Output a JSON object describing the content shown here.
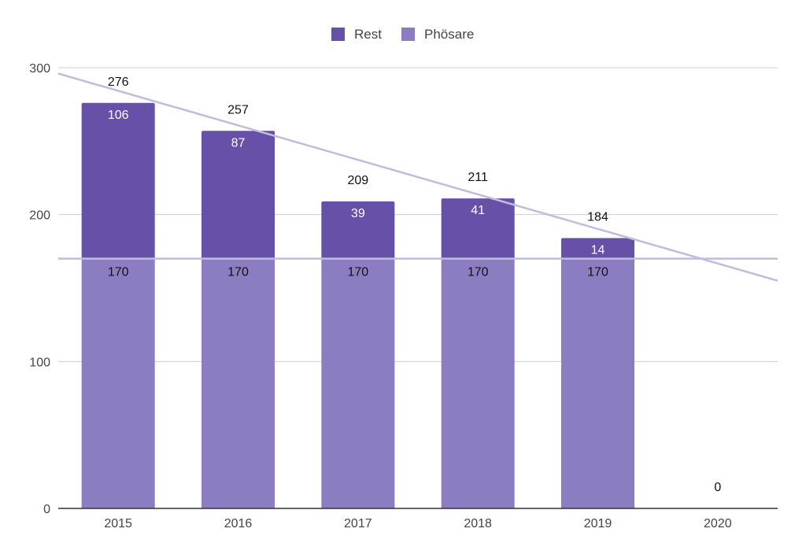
{
  "chart_data": {
    "type": "bar",
    "stacked": true,
    "categories": [
      "2015",
      "2016",
      "2017",
      "2018",
      "2019",
      "2020"
    ],
    "series": [
      {
        "name": "Phösare",
        "values": [
          170,
          170,
          170,
          170,
          170,
          0
        ],
        "color": "#8c7dc2"
      },
      {
        "name": "Rest",
        "values": [
          106,
          87,
          39,
          41,
          14,
          0
        ],
        "color": "#6650a8"
      }
    ],
    "totals": [
      276,
      257,
      209,
      211,
      184,
      0
    ],
    "reference_line": {
      "value": 170,
      "color": "#c3badf"
    },
    "trend_line": {
      "from_value": 296,
      "to_value": 155,
      "color": "#c3badf"
    },
    "ylim": [
      0,
      300
    ],
    "yticks": [
      0,
      100,
      200,
      300
    ],
    "legend_order": [
      "Rest",
      "Phösare"
    ],
    "legend_position": "top",
    "grid": true,
    "title": "",
    "xlabel": "",
    "ylabel": ""
  }
}
